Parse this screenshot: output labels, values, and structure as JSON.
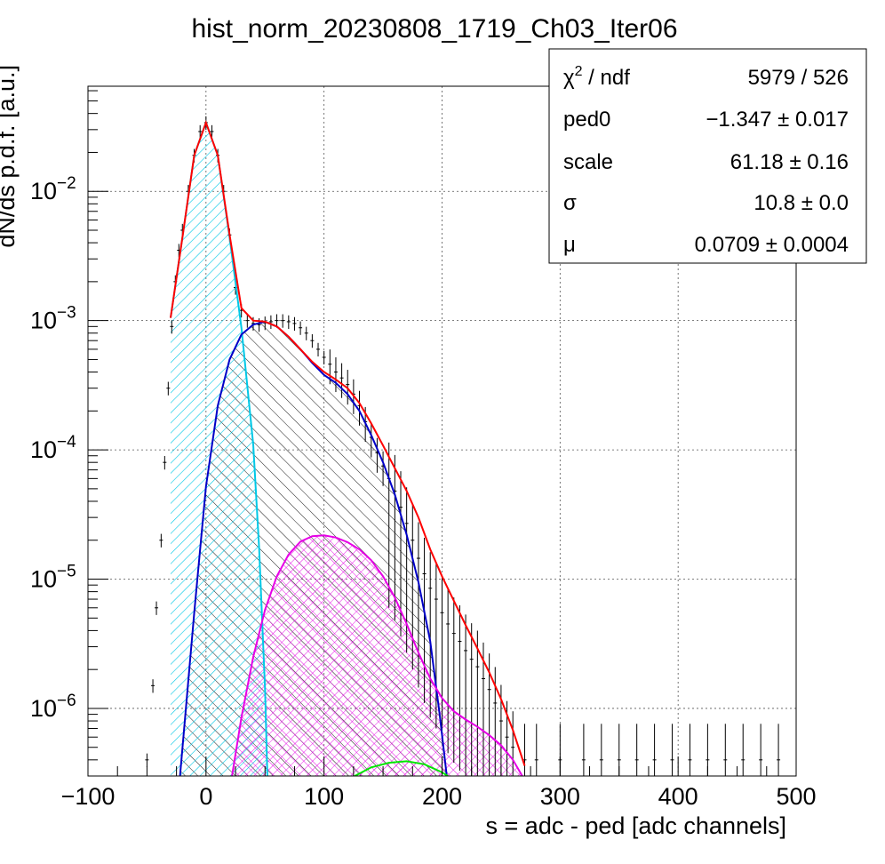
{
  "chart_data": {
    "type": "histogram",
    "title": "hist_norm_20230808_1719_Ch03_Iter06",
    "xlabel": "s = adc - ped [adc channels]",
    "ylabel": "dN/ds p.d.f. [a.u.]",
    "xlim": [
      -100,
      500
    ],
    "ylim": [
      3e-07,
      0.065
    ],
    "yscale": "log",
    "grid": true,
    "x_ticks": [
      "−100",
      "0",
      "100",
      "200",
      "300",
      "400",
      "500"
    ],
    "x_tick_values": [
      -100,
      0,
      100,
      200,
      300,
      400,
      500
    ],
    "y_tick_values": [
      1e-06,
      1e-05,
      0.0001,
      0.001,
      0.01
    ],
    "y_tick_labels": [
      {
        "base": "10",
        "exp": "−6"
      },
      {
        "base": "10",
        "exp": "−5"
      },
      {
        "base": "10",
        "exp": "−4"
      },
      {
        "base": "10",
        "exp": "−3"
      },
      {
        "base": "10",
        "exp": "−2"
      }
    ],
    "stats_box": {
      "placement": "top-right",
      "rows": [
        {
          "label": "χ",
          "label_sup": "2",
          "label_rest": " / ndf",
          "value": "5979 / 526"
        },
        {
          "label": "ped0",
          "label_sup": "",
          "label_rest": "",
          "value": "−1.347 ± 0.017"
        },
        {
          "label": "scale",
          "label_sup": "",
          "label_rest": "",
          "value": "61.18 ± 0.16"
        },
        {
          "label": "σ",
          "label_sup": "",
          "label_rest": "",
          "value": "10.8 ± 0.0"
        },
        {
          "label": "μ",
          "label_sup": "",
          "label_rest": "",
          "value": "0.0709 ± 0.0004"
        }
      ]
    },
    "fit_params": {
      "ped0": -1.347,
      "scale": 61.18,
      "sigma": 10.8,
      "mu": 0.0709
    },
    "series": [
      {
        "color": "#ff0000",
        "points": [
          [
            -30,
            0.00105
          ],
          [
            -20,
            0.0044
          ],
          [
            -10,
            0.019
          ],
          [
            0,
            0.034
          ],
          [
            10,
            0.019
          ],
          [
            20,
            0.0046
          ],
          [
            30,
            0.00125
          ],
          [
            40,
            0.001
          ],
          [
            50,
            0.00098
          ],
          [
            60,
            0.0009
          ],
          [
            70,
            0.00075
          ],
          [
            80,
            0.0006
          ],
          [
            90,
            0.00048
          ],
          [
            100,
            0.0004
          ],
          [
            110,
            0.00035
          ],
          [
            120,
            0.0003
          ],
          [
            130,
            0.00023
          ],
          [
            140,
            0.00016
          ],
          [
            150,
            0.000108
          ],
          [
            160,
            7.2e-05
          ],
          [
            170,
            4.8e-05
          ],
          [
            180,
            3e-05
          ],
          [
            190,
            1.7e-05
          ],
          [
            200,
            1.05e-05
          ],
          [
            210,
            6.8e-06
          ],
          [
            220,
            4.4e-06
          ],
          [
            230,
            2.9e-06
          ],
          [
            240,
            1.9e-06
          ],
          [
            250,
            1.18e-06
          ],
          [
            260,
            6.8e-07
          ],
          [
            270,
            3.6e-07
          ]
        ]
      },
      {
        "color": "#00c8e6",
        "points": [
          [
            -30,
            0.00105
          ],
          [
            -20,
            0.0044
          ],
          [
            -10,
            0.019
          ],
          [
            0,
            0.034
          ],
          [
            10,
            0.019
          ],
          [
            20,
            0.0044
          ],
          [
            30,
            0.00088
          ],
          [
            40,
            0.00011
          ],
          [
            45,
            1.75e-05
          ],
          [
            50,
            1.4e-06
          ],
          [
            52,
            3e-07
          ]
        ]
      },
      {
        "color": "#0000c8",
        "points": [
          [
            -22,
            3e-07
          ],
          [
            -10,
            5.5e-06
          ],
          [
            0,
            5.2e-05
          ],
          [
            10,
            0.00022
          ],
          [
            20,
            0.0005
          ],
          [
            30,
            0.00078
          ],
          [
            40,
            0.00093
          ],
          [
            50,
            0.00098
          ],
          [
            60,
            0.0009
          ],
          [
            70,
            0.00075
          ],
          [
            80,
            0.0006
          ],
          [
            90,
            0.00047
          ],
          [
            100,
            0.00038
          ],
          [
            110,
            0.00033
          ],
          [
            120,
            0.00027
          ],
          [
            130,
            0.0002
          ],
          [
            140,
            0.00013
          ],
          [
            150,
            8e-05
          ],
          [
            160,
            4.5e-05
          ],
          [
            170,
            2.2e-05
          ],
          [
            180,
            9.5e-06
          ],
          [
            190,
            3.3e-06
          ],
          [
            198,
            9e-07
          ],
          [
            204,
            3e-07
          ]
        ]
      },
      {
        "color": "#e600e6",
        "points": [
          [
            22,
            3e-07
          ],
          [
            30,
            8.5e-07
          ],
          [
            40,
            2.5e-06
          ],
          [
            50,
            5.8e-06
          ],
          [
            60,
            1.05e-05
          ],
          [
            70,
            1.55e-05
          ],
          [
            80,
            1.95e-05
          ],
          [
            90,
            2.15e-05
          ],
          [
            100,
            2.18e-05
          ],
          [
            110,
            2.1e-05
          ],
          [
            120,
            1.93e-05
          ],
          [
            130,
            1.7e-05
          ],
          [
            140,
            1.4e-05
          ],
          [
            150,
            1.05e-05
          ],
          [
            160,
            7.2e-06
          ],
          [
            170,
            4.5e-06
          ],
          [
            180,
            2.7e-06
          ],
          [
            190,
            1.7e-06
          ],
          [
            200,
            1.2e-06
          ],
          [
            210,
            9.5e-07
          ],
          [
            220,
            8.2e-07
          ],
          [
            230,
            7.2e-07
          ],
          [
            240,
            6.2e-07
          ],
          [
            250,
            5.2e-07
          ],
          [
            260,
            4e-07
          ],
          [
            268,
            3e-07
          ]
        ]
      },
      {
        "color": "#00e600",
        "points": [
          [
            126,
            3e-07
          ],
          [
            140,
            3.5e-07
          ],
          [
            155,
            3.8e-07
          ],
          [
            170,
            3.9e-07
          ],
          [
            185,
            3.7e-07
          ],
          [
            200,
            3.2e-07
          ],
          [
            205,
            3e-07
          ]
        ]
      }
    ],
    "data_points": [
      [
        -50,
        4e-07
      ],
      [
        -45,
        1.5e-06
      ],
      [
        -42,
        6e-06
      ],
      [
        -38,
        2e-05
      ],
      [
        -35,
        8e-05
      ],
      [
        -32,
        0.0003
      ],
      [
        -29,
        0.0009
      ],
      [
        -26,
        0.002
      ],
      [
        -23,
        0.0035
      ],
      [
        -20,
        0.005
      ],
      [
        -15,
        0.01
      ],
      [
        -10,
        0.019
      ],
      [
        -5,
        0.029
      ],
      [
        0,
        0.034
      ],
      [
        5,
        0.029
      ],
      [
        10,
        0.019
      ],
      [
        15,
        0.01
      ],
      [
        20,
        0.0046
      ],
      [
        25,
        0.0018
      ],
      [
        30,
        0.0012
      ],
      [
        35,
        0.001
      ],
      [
        40,
        0.00095
      ],
      [
        45,
        0.00093
      ],
      [
        50,
        0.00096
      ],
      [
        55,
        0.00098
      ],
      [
        60,
        0.001
      ],
      [
        65,
        0.001
      ],
      [
        70,
        0.00098
      ],
      [
        75,
        0.00095
      ],
      [
        80,
        0.00088
      ],
      [
        85,
        0.0008
      ],
      [
        90,
        0.0007
      ],
      [
        95,
        0.0006
      ],
      [
        100,
        0.00052
      ],
      [
        105,
        0.00046
      ],
      [
        110,
        0.0004
      ],
      [
        115,
        0.00036
      ],
      [
        120,
        0.00032
      ],
      [
        125,
        0.00027
      ],
      [
        130,
        0.00022
      ],
      [
        135,
        0.000165
      ],
      [
        140,
        0.000125
      ],
      [
        145,
        9.5e-05
      ],
      [
        150,
        7.5e-05
      ],
      [
        155,
        6e-05
      ],
      [
        160,
        4.8e-05
      ],
      [
        165,
        3.6e-05
      ],
      [
        170,
        2.7e-05
      ],
      [
        175,
        2e-05
      ],
      [
        180,
        1.45e-05
      ],
      [
        185,
        1.1e-05
      ],
      [
        190,
        8.5e-06
      ],
      [
        195,
        7e-06
      ],
      [
        200,
        5.5e-06
      ],
      [
        205,
        4.5e-06
      ],
      [
        210,
        3.8e-06
      ],
      [
        215,
        3.3e-06
      ],
      [
        220,
        2.8e-06
      ],
      [
        225,
        2.4e-06
      ],
      [
        230,
        2.1e-06
      ],
      [
        235,
        1.7e-06
      ],
      [
        240,
        1.4e-06
      ],
      [
        245,
        1.1e-06
      ],
      [
        250,
        8e-07
      ],
      [
        255,
        6e-07
      ],
      [
        260,
        5e-07
      ],
      [
        270,
        4e-07
      ],
      [
        280,
        4e-07
      ],
      [
        300,
        4e-07
      ],
      [
        320,
        4e-07
      ],
      [
        335,
        4e-07
      ],
      [
        350,
        4e-07
      ],
      [
        365,
        4e-07
      ],
      [
        380,
        4e-07
      ],
      [
        395,
        4e-07
      ],
      [
        410,
        4e-07
      ],
      [
        425,
        4e-07
      ],
      [
        440,
        4e-07
      ],
      [
        455,
        4e-07
      ],
      [
        470,
        4e-07
      ],
      [
        485,
        4e-07
      ]
    ]
  }
}
